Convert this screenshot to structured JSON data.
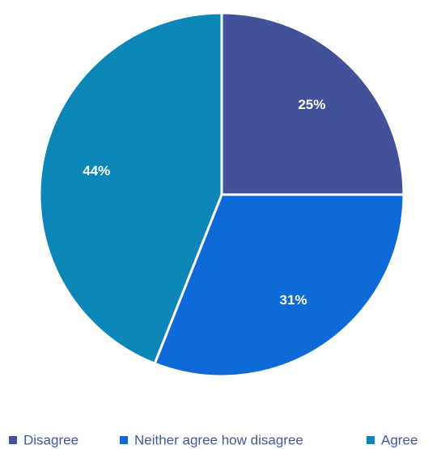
{
  "chart_data": {
    "type": "pie",
    "categories": [
      "Disagree",
      "Neither agree how disagree",
      "Agree"
    ],
    "values": [
      25,
      31,
      44
    ],
    "labels": [
      "25%",
      "31%",
      "44%"
    ],
    "colors": [
      "#42519a",
      "#0e6ad8",
      "#0b86b6"
    ],
    "legend_placement": "bottom",
    "legend_text_color": "#3e5a9e",
    "start_angle_deg": 0,
    "direction": "clockwise"
  }
}
